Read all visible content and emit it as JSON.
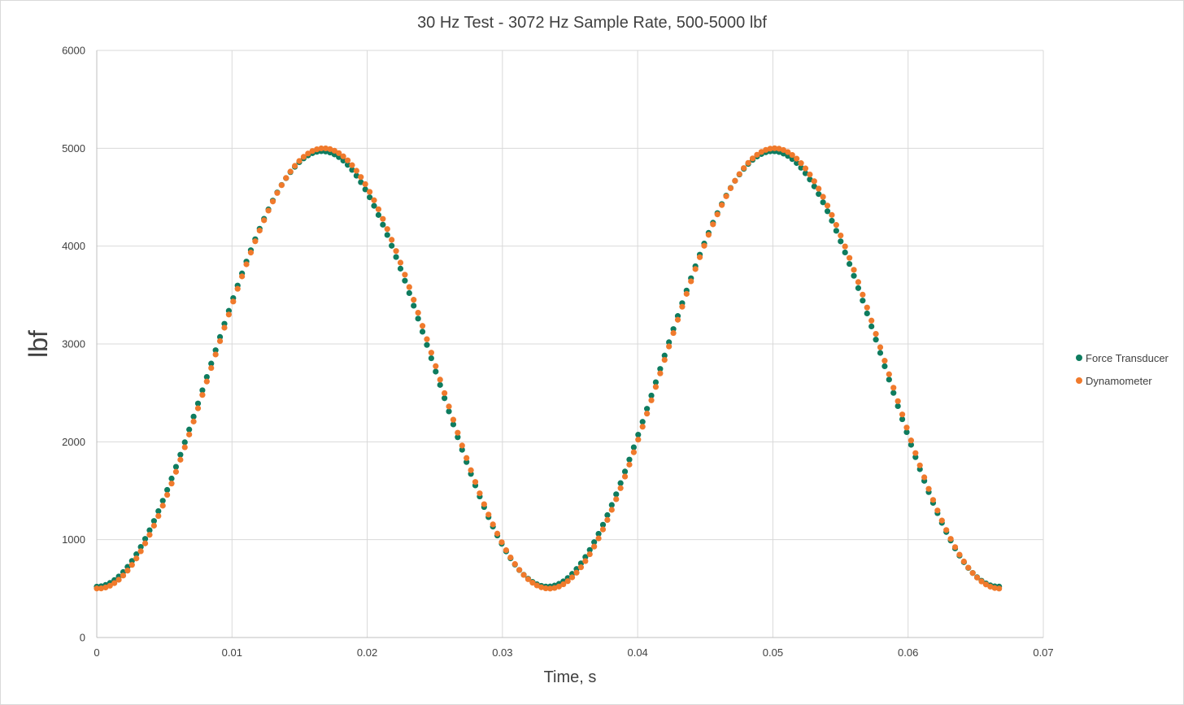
{
  "chart_data": {
    "type": "scatter",
    "title": "30 Hz Test - 3072 Hz Sample Rate, 500-5000 lbf",
    "xlabel": "Time, s",
    "ylabel": "lbf",
    "xlim": [
      0,
      0.07
    ],
    "ylim": [
      0,
      6000
    ],
    "x_ticks": [
      "0",
      "0.01",
      "0.02",
      "0.03",
      "0.04",
      "0.05",
      "0.06",
      "0.07"
    ],
    "y_ticks": [
      "0",
      "1000",
      "2000",
      "3000",
      "4000",
      "5000",
      "6000"
    ],
    "grid": true,
    "legend_position": "right",
    "sample_rate_hz": 3072,
    "n_samples": 206,
    "series": [
      {
        "name": "Force Transducer",
        "color": "#0e7c5f",
        "min": 520,
        "max": 4970,
        "frequency_hz": 30,
        "phase_offset_s": 0
      },
      {
        "name": "Dynamometer",
        "color": "#f07a2c",
        "min": 500,
        "max": 5000,
        "frequency_hz": 30,
        "phase_offset_s": 0.00012
      }
    ]
  }
}
